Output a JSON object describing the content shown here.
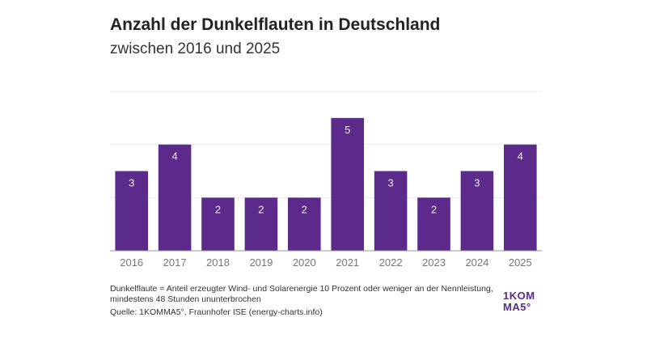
{
  "chart_data": {
    "type": "bar",
    "title": "Anzahl der Dunkelflauten in Deutschland",
    "subtitle": "zwischen 2016 und 2025",
    "categories": [
      "2016",
      "2017",
      "2018",
      "2019",
      "2020",
      "2021",
      "2022",
      "2023",
      "2024",
      "2025"
    ],
    "values": [
      3,
      4,
      2,
      2,
      2,
      5,
      3,
      2,
      3,
      4
    ],
    "ylim": [
      0,
      6
    ],
    "grid": true,
    "bar_color": "#5b2a8a",
    "data_labels": true
  },
  "footer": {
    "note_line1": "Dunkelflaute = Anteil erzeugter Wind- und Solarenergie 10 Prozent oder weniger an der Nennleistung,",
    "note_line2": "mindestens 48 Stunden ununterbrochen",
    "source": "Quelle: 1KOMMA5°, Fraunhofer ISE (energy-charts.info)"
  },
  "logo": {
    "line1": "1KOM",
    "line2": "MA5°"
  }
}
